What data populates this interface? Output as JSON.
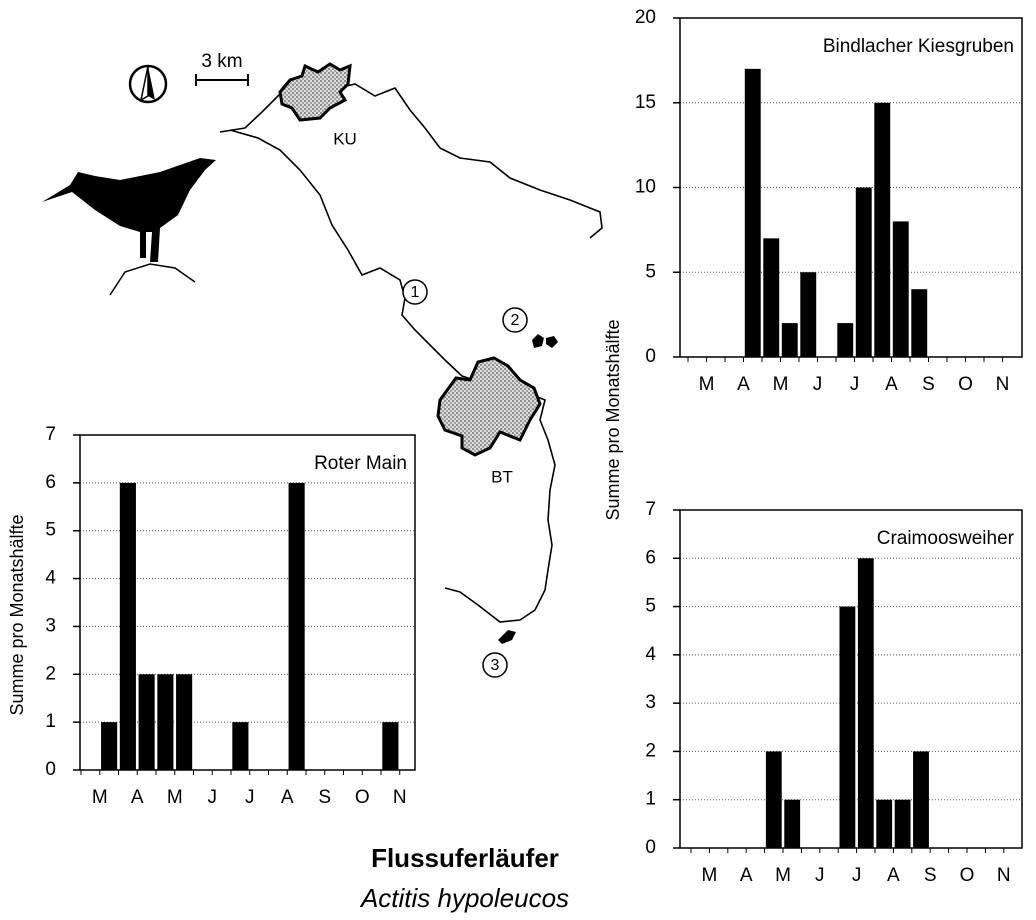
{
  "chart_data": [
    {
      "type": "bar",
      "title": "Roter Main",
      "categories": [
        "M",
        null,
        "A",
        null,
        "M",
        null,
        "J",
        null,
        "J",
        null,
        "A",
        null,
        "S",
        null,
        "O",
        null,
        "N",
        null
      ],
      "values": [
        0,
        1,
        6,
        2,
        2,
        2,
        0,
        0,
        1,
        0,
        0,
        6,
        0,
        0,
        0,
        0,
        1,
        0
      ],
      "color": "#000000",
      "ylim": [
        0,
        7
      ],
      "yticks": [
        0,
        1,
        2,
        3,
        4,
        5,
        6,
        7
      ],
      "grid": true,
      "y_label": "Summe pro Monatshälfte"
    },
    {
      "type": "bar",
      "title": "Bindlacher Kiesgruben",
      "categories": [
        "M",
        null,
        "A",
        null,
        "M",
        null,
        "J",
        null,
        "J",
        null,
        "A",
        null,
        "S",
        null,
        "O",
        null,
        "N",
        null
      ],
      "values": [
        0,
        0,
        0,
        17,
        7,
        2,
        5,
        0,
        2,
        10,
        15,
        8,
        4,
        0,
        0,
        0,
        0,
        0
      ],
      "color": "#000000",
      "ylim": [
        0,
        20
      ],
      "yticks": [
        0,
        5,
        10,
        15,
        20
      ],
      "grid": true,
      "y_label": "Summe pro Monatshälfte"
    },
    {
      "type": "bar",
      "title": "Craimoosweiher",
      "categories": [
        "M",
        null,
        "A",
        null,
        "M",
        null,
        "J",
        null,
        "J",
        null,
        "A",
        null,
        "S",
        null,
        "O",
        null,
        "N",
        null
      ],
      "values": [
        0,
        0,
        0,
        0,
        2,
        1,
        0,
        0,
        5,
        6,
        1,
        1,
        2,
        0,
        0,
        0,
        0,
        0
      ],
      "color": "#000000",
      "ylim": [
        0,
        7
      ],
      "yticks": [
        0,
        1,
        2,
        3,
        4,
        5,
        6,
        7
      ],
      "grid": true
    }
  ],
  "map": {
    "scale": "3 km",
    "places": [
      "KU",
      "BT"
    ],
    "sites": [
      "1",
      "2",
      "3"
    ]
  },
  "caption": {
    "title": "Flussuferläufer",
    "subtitle": "Actitis hypoleucos"
  }
}
